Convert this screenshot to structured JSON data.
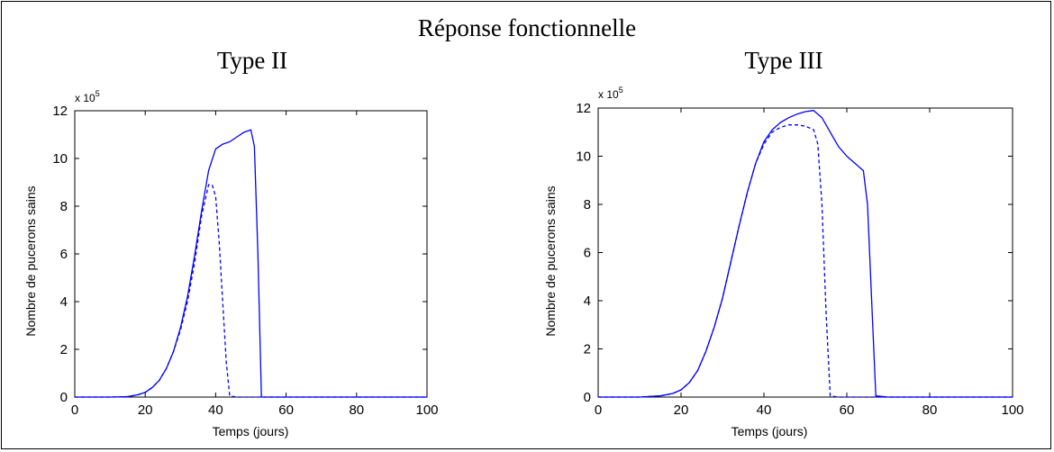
{
  "figure": {
    "title": "Réponse fonctionnelle"
  },
  "colors": {
    "series": "#0000ff",
    "axis": "#000000"
  },
  "chart_data": [
    {
      "type": "line",
      "title": "Type II",
      "xlabel": "Temps (jours)",
      "ylabel": "Nombre de pucerons sains",
      "y_multiplier": "x 10",
      "y_multiplier_exponent": "5",
      "xlim": [
        0,
        100
      ],
      "ylim": [
        0,
        12
      ],
      "xticks": [
        "0",
        "20",
        "40",
        "60",
        "80",
        "100"
      ],
      "yticks": [
        "0",
        "2",
        "4",
        "6",
        "8",
        "10",
        "12"
      ],
      "grid": false,
      "series": [
        {
          "style": "solid",
          "x": [
            0,
            10,
            15,
            18,
            20,
            22,
            24,
            26,
            28,
            30,
            32,
            34,
            36,
            38,
            40,
            42,
            44,
            46,
            48,
            50,
            51,
            52,
            53,
            55,
            60,
            80,
            100
          ],
          "y": [
            0,
            0,
            0.02,
            0.1,
            0.2,
            0.4,
            0.7,
            1.2,
            1.9,
            2.9,
            4.2,
            5.9,
            7.8,
            9.5,
            10.4,
            10.6,
            10.7,
            10.9,
            11.1,
            11.2,
            10.5,
            6,
            0,
            0,
            0,
            0,
            0
          ]
        },
        {
          "style": "dashed",
          "x": [
            0,
            10,
            15,
            18,
            20,
            22,
            24,
            26,
            28,
            30,
            32,
            34,
            36,
            38,
            39,
            40,
            41,
            42,
            43,
            44,
            46,
            60,
            80,
            100
          ],
          "y": [
            0,
            0,
            0.02,
            0.1,
            0.2,
            0.4,
            0.7,
            1.2,
            1.9,
            2.8,
            4.0,
            5.6,
            7.6,
            8.9,
            8.9,
            8.4,
            6.5,
            4.0,
            1.5,
            0.05,
            0,
            0,
            0,
            0
          ]
        }
      ]
    },
    {
      "type": "line",
      "title": "Type III",
      "xlabel": "Temps (jours)",
      "ylabel": "Nombre de pucerons sains",
      "y_multiplier": "x 10",
      "y_multiplier_exponent": "5",
      "xlim": [
        0,
        100
      ],
      "ylim": [
        0,
        12
      ],
      "xticks": [
        "0",
        "20",
        "40",
        "60",
        "80",
        "100"
      ],
      "yticks": [
        "0",
        "2",
        "4",
        "6",
        "8",
        "10",
        "12"
      ],
      "grid": false,
      "series": [
        {
          "style": "solid",
          "x": [
            0,
            10,
            15,
            18,
            20,
            22,
            24,
            26,
            28,
            30,
            32,
            34,
            36,
            38,
            40,
            42,
            44,
            46,
            48,
            50,
            52,
            54,
            56,
            58,
            60,
            62,
            64,
            65,
            66,
            67,
            70,
            80,
            100
          ],
          "y": [
            0,
            0,
            0.05,
            0.15,
            0.3,
            0.6,
            1.1,
            1.9,
            2.9,
            4.1,
            5.6,
            7.1,
            8.5,
            9.7,
            10.6,
            11.1,
            11.4,
            11.6,
            11.75,
            11.85,
            11.9,
            11.6,
            11.0,
            10.4,
            10.0,
            9.7,
            9.4,
            8.0,
            4.0,
            0.05,
            0,
            0,
            0
          ]
        },
        {
          "style": "dashed",
          "x": [
            0,
            10,
            15,
            18,
            20,
            22,
            24,
            26,
            28,
            30,
            32,
            34,
            36,
            38,
            40,
            42,
            44,
            46,
            48,
            50,
            52,
            53,
            54,
            55,
            56,
            58,
            60,
            62,
            64,
            66,
            67,
            70,
            80,
            100
          ],
          "y": [
            0,
            0,
            0.05,
            0.15,
            0.3,
            0.6,
            1.1,
            1.9,
            2.9,
            4.1,
            5.6,
            7.1,
            8.5,
            9.7,
            10.5,
            11.0,
            11.2,
            11.3,
            11.3,
            11.25,
            11.1,
            10.5,
            8.0,
            3.5,
            0.05,
            0,
            0,
            0,
            0,
            0,
            0,
            0,
            0,
            0
          ]
        }
      ]
    }
  ]
}
